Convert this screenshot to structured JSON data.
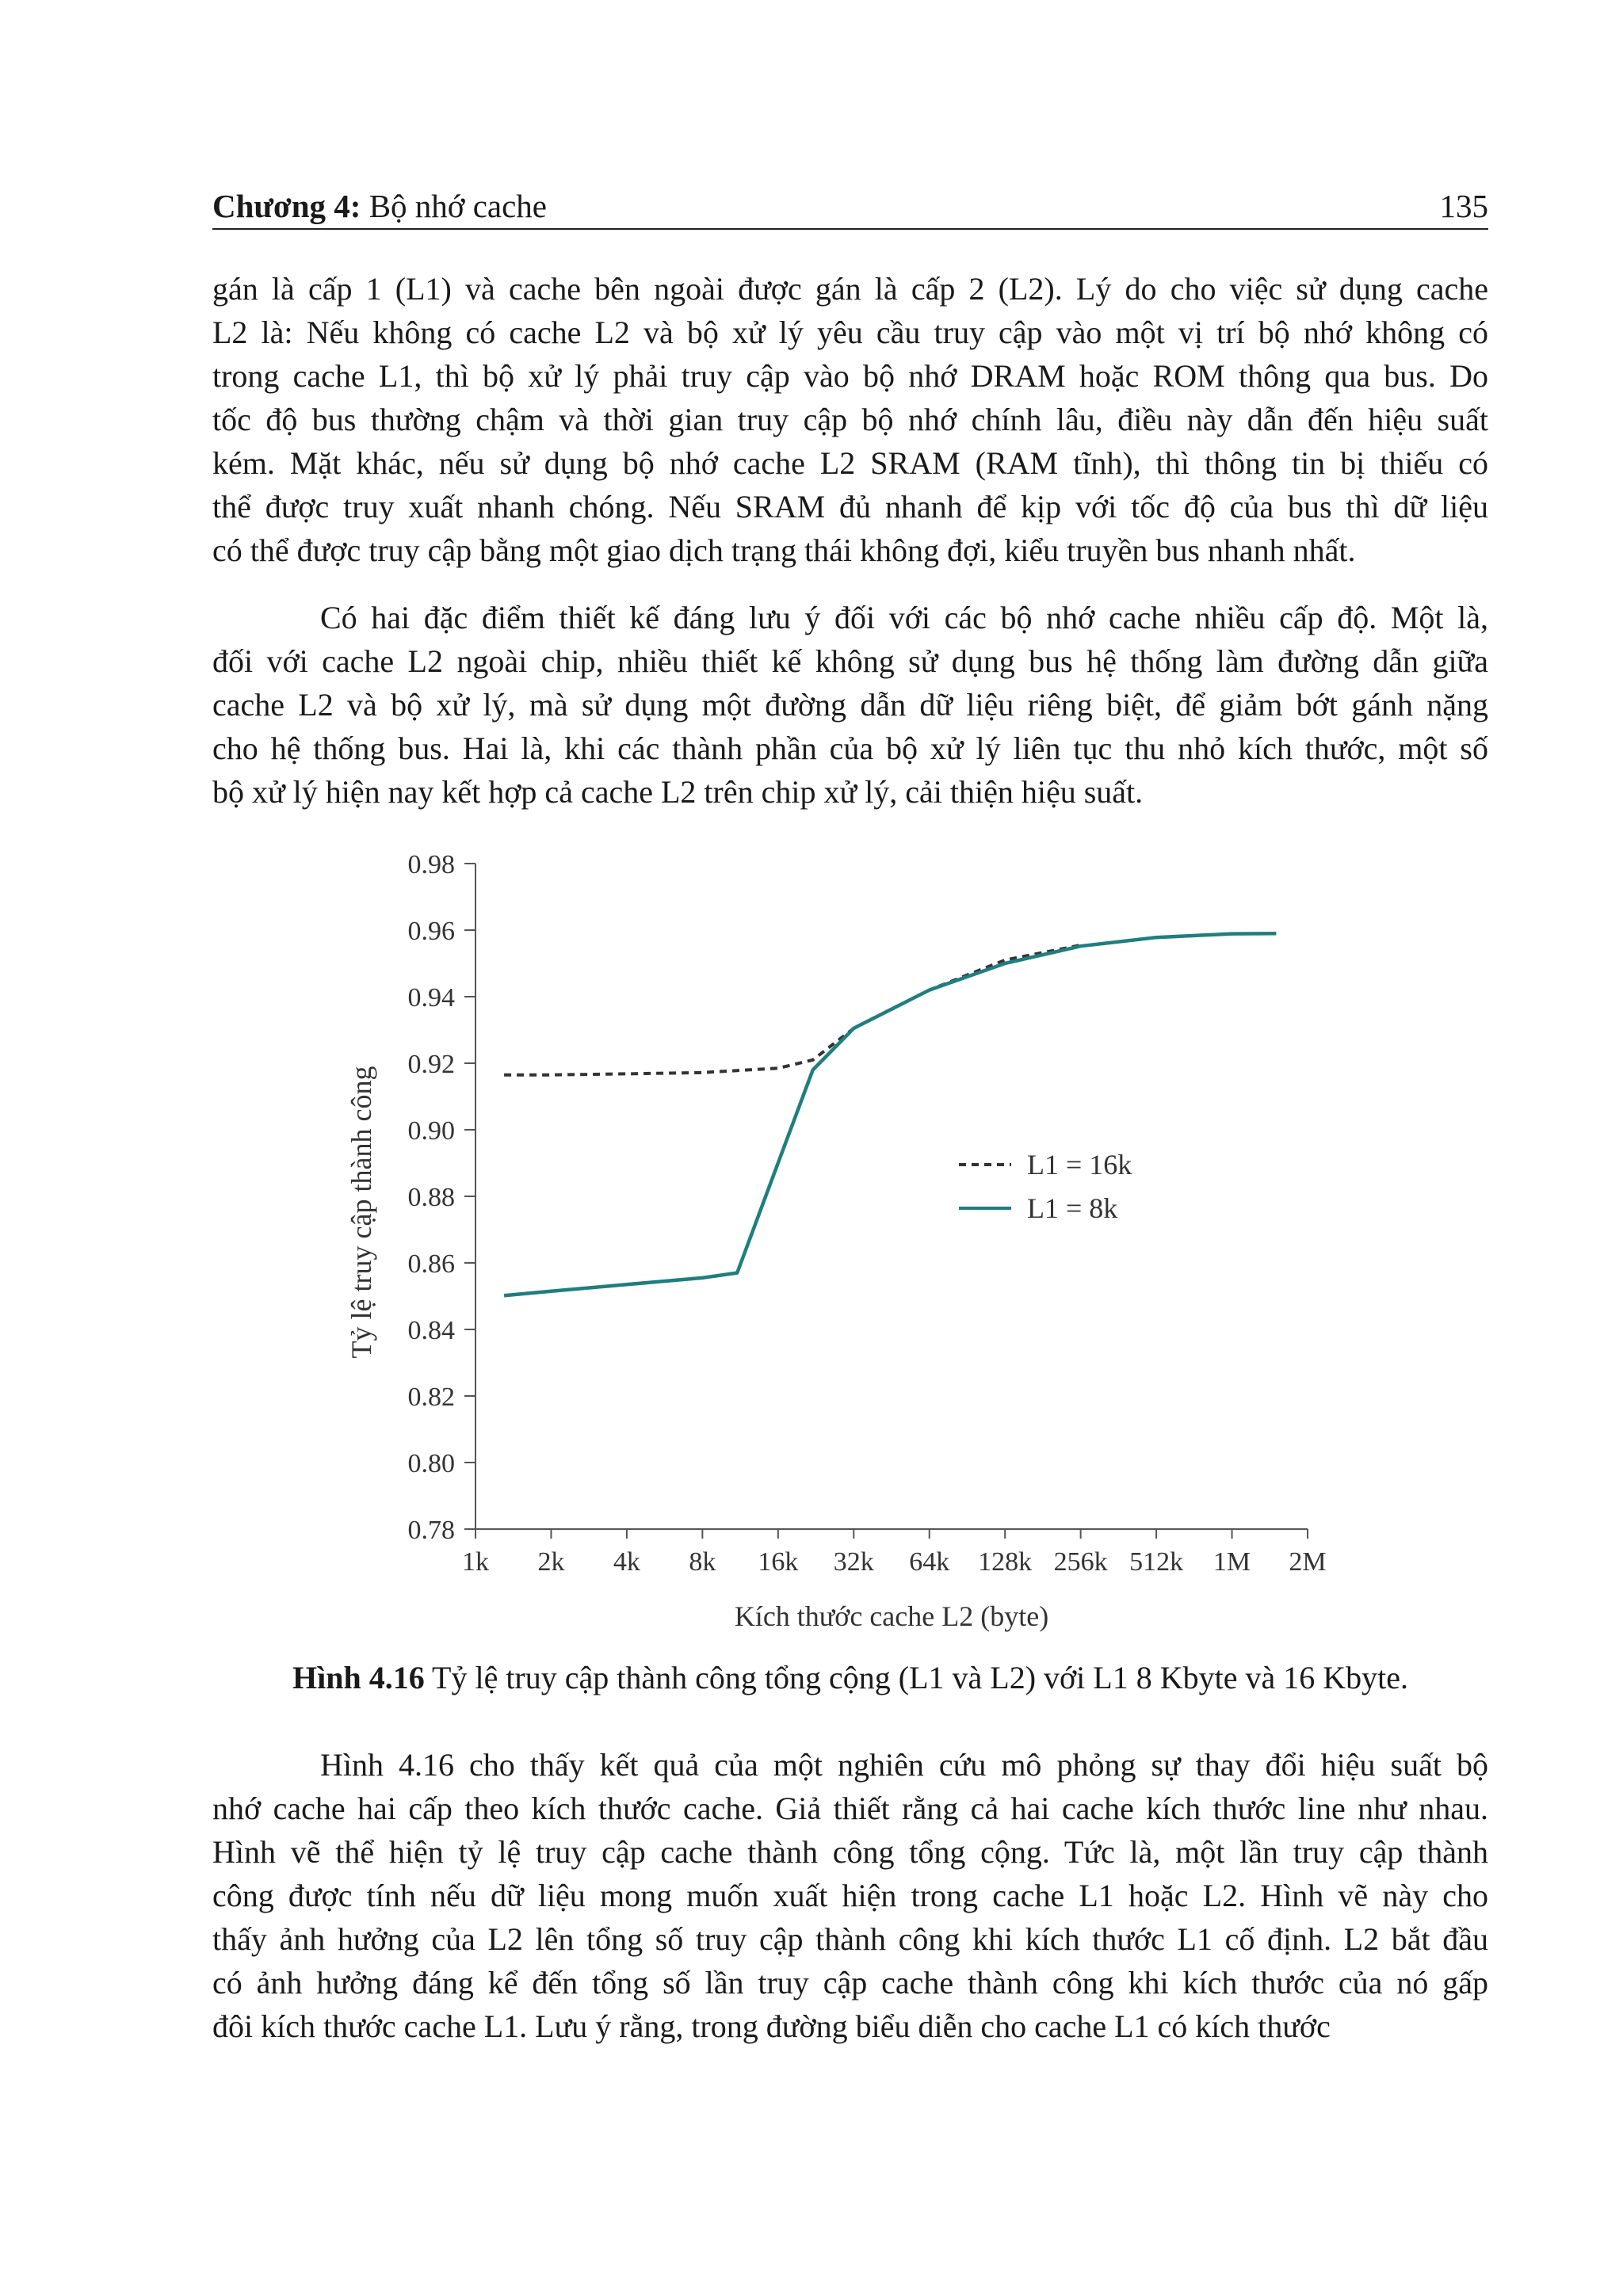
{
  "header": {
    "chapter_label": "Chương 4:",
    "chapter_title": "Bộ nhớ cache",
    "page_number": "135"
  },
  "paragraph1": [
    "gán là cấp 1 (L1) và cache bên ngoài được gán là cấp 2 (L2). Lý do cho việc sử dụng cache",
    "L2 là: Nếu không có cache L2 và bộ xử lý yêu cầu truy cập vào một vị trí bộ nhớ không có",
    "trong cache L1, thì bộ xử lý phải truy cập vào bộ nhớ DRAM hoặc ROM thông qua bus. Do",
    "tốc độ bus thường chậm và thời gian truy cập bộ nhớ chính lâu, điều này dẫn đến hiệu suất",
    "kém. Mặt khác, nếu sử dụng bộ nhớ cache L2 SRAM (RAM tĩnh), thì thông tin bị thiếu có",
    "thể được truy xuất nhanh chóng. Nếu SRAM đủ nhanh để kịp với tốc độ của bus thì dữ liệu",
    "có thể được truy cập bằng một giao dịch trạng thái không đợi, kiểu truyền bus nhanh nhất."
  ],
  "paragraph2": [
    "Có hai đặc điểm thiết kế đáng lưu ý đối với các bộ nhớ cache nhiều cấp độ. Một là,",
    "đối với cache L2 ngoài chip, nhiều thiết kế không sử dụng bus hệ thống làm đường dẫn giữa",
    "cache L2 và bộ xử lý, mà sử dụng một đường dẫn dữ liệu riêng biệt, để giảm bớt gánh nặng",
    "cho hệ thống bus. Hai là, khi các thành phần của bộ xử lý liên tục thu nhỏ kích thước, một số",
    "bộ xử lý hiện nay kết hợp cả cache L2 trên chip xử lý, cải thiện hiệu suất."
  ],
  "chart_data": {
    "type": "line",
    "title": "",
    "xlabel": "Kích thước cache L2 (byte)",
    "ylabel": "Tỷ lệ truy cập thành công",
    "x_ticks": [
      "1k",
      "2k",
      "4k",
      "8k",
      "16k",
      "32k",
      "64k",
      "128k",
      "256k",
      "512k",
      "1M",
      "2M"
    ],
    "y_ticks": [
      "0.98",
      "0.96",
      "0.94",
      "0.92",
      "0.90",
      "0.88",
      "0.86",
      "0.84",
      "0.82",
      "0.80",
      "0.78"
    ],
    "ylim": [
      0.78,
      0.98
    ],
    "x_scale": "log2",
    "grid": false,
    "legend_position": "center-right",
    "series": [
      {
        "name": "L1 = 16k",
        "style": "dashed",
        "color": "#333333",
        "x": [
          "1.3k",
          "2k",
          "4k",
          "8k",
          "11k",
          "16k",
          "22k",
          "32k",
          "64k",
          "128k",
          "256k"
        ],
        "values": [
          0.9165,
          0.9165,
          0.9168,
          0.9172,
          0.9178,
          0.9185,
          0.921,
          0.9305,
          0.942,
          0.951,
          0.9555
        ]
      },
      {
        "name": "L1 = 8k",
        "style": "solid",
        "color": "#1f7e80",
        "x": [
          "1.3k",
          "2k",
          "4k",
          "8k",
          "11k",
          "16k",
          "22k",
          "32k",
          "64k",
          "128k",
          "256k",
          "512k",
          "1M",
          "1.5M"
        ],
        "values": [
          0.8502,
          0.8515,
          0.8535,
          0.8555,
          0.857,
          0.89,
          0.918,
          0.9305,
          0.942,
          0.95,
          0.9552,
          0.9578,
          0.9589,
          0.959
        ]
      }
    ]
  },
  "caption": {
    "label": "Hình 4.16",
    "text": "Tỷ lệ truy cập thành công tổng cộng (L1 và L2) với L1 8 Kbyte và 16 Kbyte."
  },
  "paragraph3": [
    "Hình 4.16 cho thấy kết quả của một nghiên cứu mô phỏng sự thay đổi hiệu suất bộ",
    "nhớ cache hai cấp theo kích thước cache. Giả thiết rằng cả hai cache kích thước line như nhau.",
    "Hình vẽ thể hiện tỷ lệ truy cập cache thành công tổng cộng. Tức là, một lần truy cập thành",
    "công được tính nếu dữ liệu mong muốn xuất hiện trong cache L1 hoặc L2. Hình vẽ này cho",
    "thấy ảnh hưởng của L2 lên tổng số truy cập thành công khi kích thước L1 cố định. L2 bắt đầu",
    "có ảnh hưởng đáng kể đến tổng số lần truy cập cache thành công khi kích thước của nó gấp",
    "đôi kích thước cache L1. Lưu ý rằng, trong đường biểu diễn cho cache L1 có kích thước"
  ]
}
